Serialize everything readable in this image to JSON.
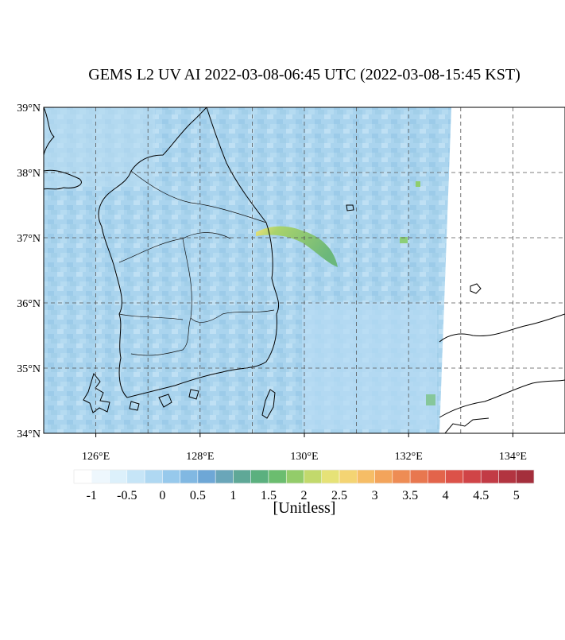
{
  "title": "GEMS L2 UV AI 2022-03-08-06:45 UTC (2022-03-08-15:45 KST)",
  "map": {
    "xlim": [
      125,
      135
    ],
    "ylim": [
      34,
      39
    ],
    "xticks": [
      {
        "value": 126,
        "label": "126°E"
      },
      {
        "value": 128,
        "label": "128°E"
      },
      {
        "value": 130,
        "label": "130°E"
      },
      {
        "value": 132,
        "label": "132°E"
      },
      {
        "value": 134,
        "label": "134°E"
      }
    ],
    "yticks": [
      {
        "value": 34,
        "label": "34°N"
      },
      {
        "value": 35,
        "label": "35°N"
      },
      {
        "value": 36,
        "label": "36°N"
      },
      {
        "value": 37,
        "label": "37°N"
      },
      {
        "value": 38,
        "label": "38°N"
      },
      {
        "value": 39,
        "label": "39°N"
      }
    ]
  },
  "colorbar": {
    "range": [
      -1.25,
      5.25
    ],
    "colors": [
      "#ffffff",
      "#eef7fd",
      "#dcf0fb",
      "#c6e5f7",
      "#afd8f2",
      "#97c9ec",
      "#81b8e2",
      "#6ea7d6",
      "#6aa6b9",
      "#5fa897",
      "#5bb07f",
      "#6bbd6f",
      "#93cc6a",
      "#c2d96c",
      "#e6e277",
      "#f4d473",
      "#f6bd66",
      "#f3a45b",
      "#ee8c54",
      "#e8774f",
      "#e3644b",
      "#dc5249",
      "#d04447",
      "#c23b45",
      "#b23440",
      "#a42f3c"
    ],
    "ticks": [
      -1,
      -0.5,
      0,
      0.5,
      1,
      1.5,
      2,
      2.5,
      3,
      3.5,
      4,
      4.5,
      5
    ],
    "unit": "[Unitless]"
  }
}
